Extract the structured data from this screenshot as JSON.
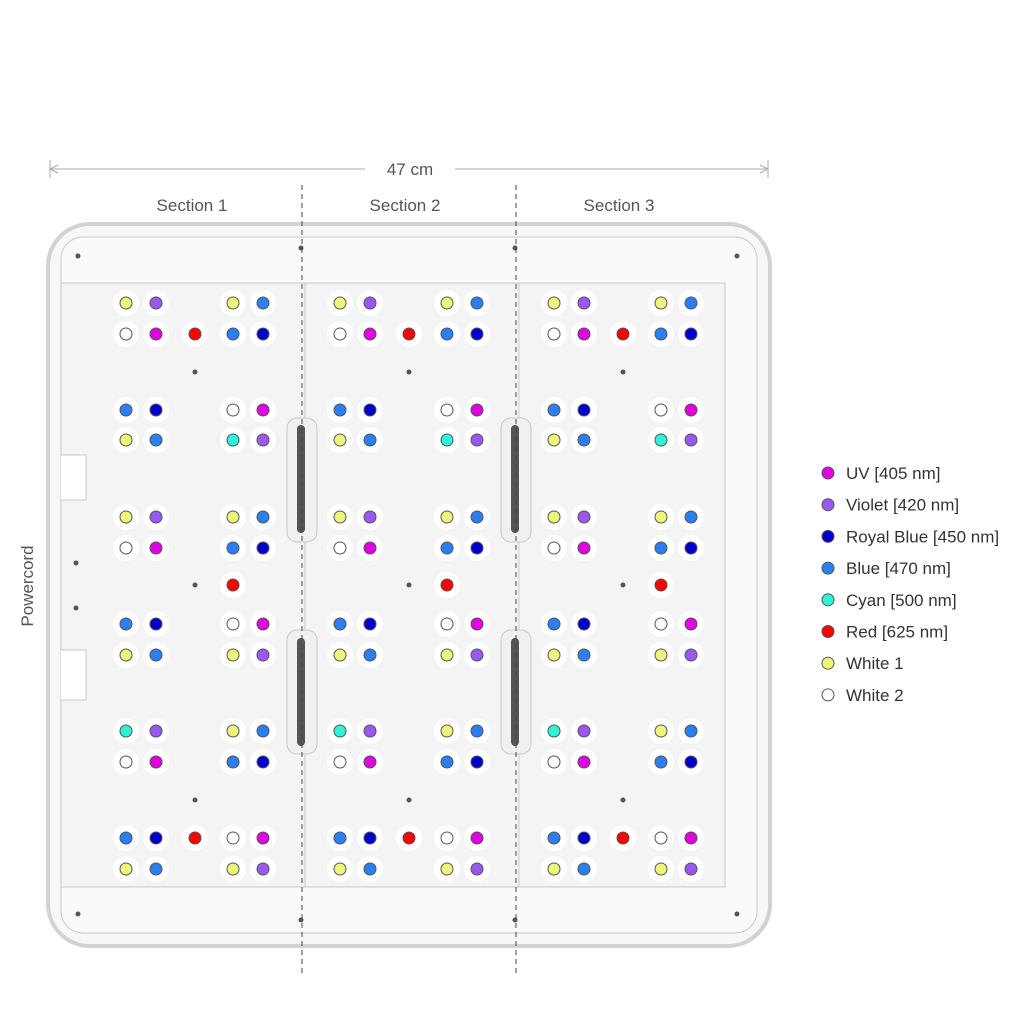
{
  "dimension": {
    "label": "47 cm"
  },
  "sections": [
    {
      "label": "Section 1"
    },
    {
      "label": "Section 2"
    },
    {
      "label": "Section 3"
    }
  ],
  "side_label": "Powercord",
  "led_types": {
    "UV": {
      "label": "UV [405 nm]",
      "color": "#e000e0"
    },
    "V": {
      "label": "Violet [420 nm]",
      "color": "#9a58f0"
    },
    "RB": {
      "label": "Royal Blue [450 nm]",
      "color": "#0000cc"
    },
    "B": {
      "label": "Blue [470 nm]",
      "color": "#2a80f0"
    },
    "C": {
      "label": "Cyan [500 nm]",
      "color": "#2ef3d8"
    },
    "R": {
      "label": "Red [625 nm]",
      "color": "#ff0000"
    },
    "W1": {
      "label": "White 1",
      "color": "#eef57c"
    },
    "W2": {
      "label": "White 2",
      "color": "#ffffff"
    }
  },
  "legend_order": [
    "UV",
    "V",
    "RB",
    "B",
    "C",
    "R",
    "W1",
    "W2"
  ],
  "legend": {
    "UV": "UV [405 nm]",
    "V": "Violet [420 nm]",
    "RB": "Royal Blue [450 nm]",
    "B": "Blue [470 nm]",
    "C": "Cyan [500 nm]",
    "R": "Red [625 nm]",
    "W1": "White 1",
    "W2": "White 2"
  },
  "section_layout": [
    [
      "W1",
      "V",
      null,
      "W1",
      "B"
    ],
    [
      "W2",
      "UV",
      "R",
      "B",
      "RB"
    ],
    [
      null,
      null,
      "dot",
      null,
      null
    ],
    [
      "B",
      "RB",
      null,
      "W2",
      "UV"
    ],
    [
      "W1",
      "B",
      null,
      "C",
      "V"
    ],
    [
      "W1",
      "V",
      null,
      "W1",
      "B"
    ],
    [
      "W2",
      "UV",
      null,
      "B",
      "RB"
    ],
    [
      null,
      null,
      "dot",
      "R",
      null
    ],
    [
      "B",
      "RB",
      null,
      "W2",
      "UV"
    ],
    [
      "W1",
      "B",
      null,
      "W1",
      "V"
    ],
    [
      "C",
      "V",
      null,
      "W1",
      "B"
    ],
    [
      "W2",
      "UV",
      null,
      "B",
      "RB"
    ],
    [
      null,
      null,
      "dot",
      null,
      null
    ],
    [
      "B",
      "RB",
      "R",
      "W2",
      "UV"
    ],
    [
      "W1",
      "B",
      null,
      "W1",
      "V"
    ]
  ]
}
